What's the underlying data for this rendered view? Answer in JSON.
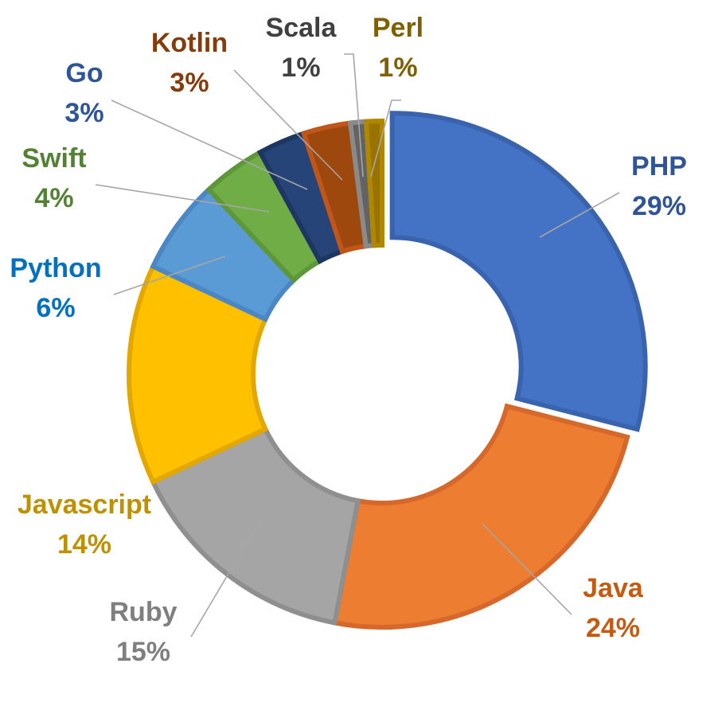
{
  "chart_data": {
    "type": "pie",
    "subtype": "donut",
    "title": "",
    "legend": "none",
    "data_labels": true,
    "exploded_slice": "PHP",
    "slices": [
      {
        "name": "PHP",
        "value": 29,
        "label": "29%",
        "fill": "#4472C4",
        "edge": "#3A63AE",
        "text_color": "#2F5597"
      },
      {
        "name": "Java",
        "value": 24,
        "label": "24%",
        "fill": "#ED7D31",
        "edge": "#D5682A",
        "text_color": "#C55A11"
      },
      {
        "name": "Ruby",
        "value": 15,
        "label": "15%",
        "fill": "#A5A5A5",
        "edge": "#8F8F8F",
        "text_color": "#7F7F7F"
      },
      {
        "name": "Javascript",
        "value": 14,
        "label": "14%",
        "fill": "#FFC000",
        "edge": "#E3A800",
        "text_color": "#BF9000"
      },
      {
        "name": "Python",
        "value": 6,
        "label": "6%",
        "fill": "#5B9BD5",
        "edge": "#4A87C4",
        "text_color": "#0070C0"
      },
      {
        "name": "Swift",
        "value": 4,
        "label": "4%",
        "fill": "#70AD47",
        "edge": "#5E973A",
        "text_color": "#548235"
      },
      {
        "name": "Go",
        "value": 3,
        "label": "3%",
        "fill": "#264478",
        "edge": "#1E3762",
        "text_color": "#2F5597"
      },
      {
        "name": "Kotlin",
        "value": 3,
        "label": "3%",
        "fill": "#9E480E",
        "edge": "#C0561A",
        "text_color": "#843C0C"
      },
      {
        "name": "Scala",
        "value": 1,
        "label": "1%",
        "fill": "#636363",
        "edge": "#8A8A8A",
        "text_color": "#404040"
      },
      {
        "name": "Perl",
        "value": 1,
        "label": "1%",
        "fill": "#997300",
        "edge": "#B08800",
        "text_color": "#7F6000"
      }
    ]
  }
}
